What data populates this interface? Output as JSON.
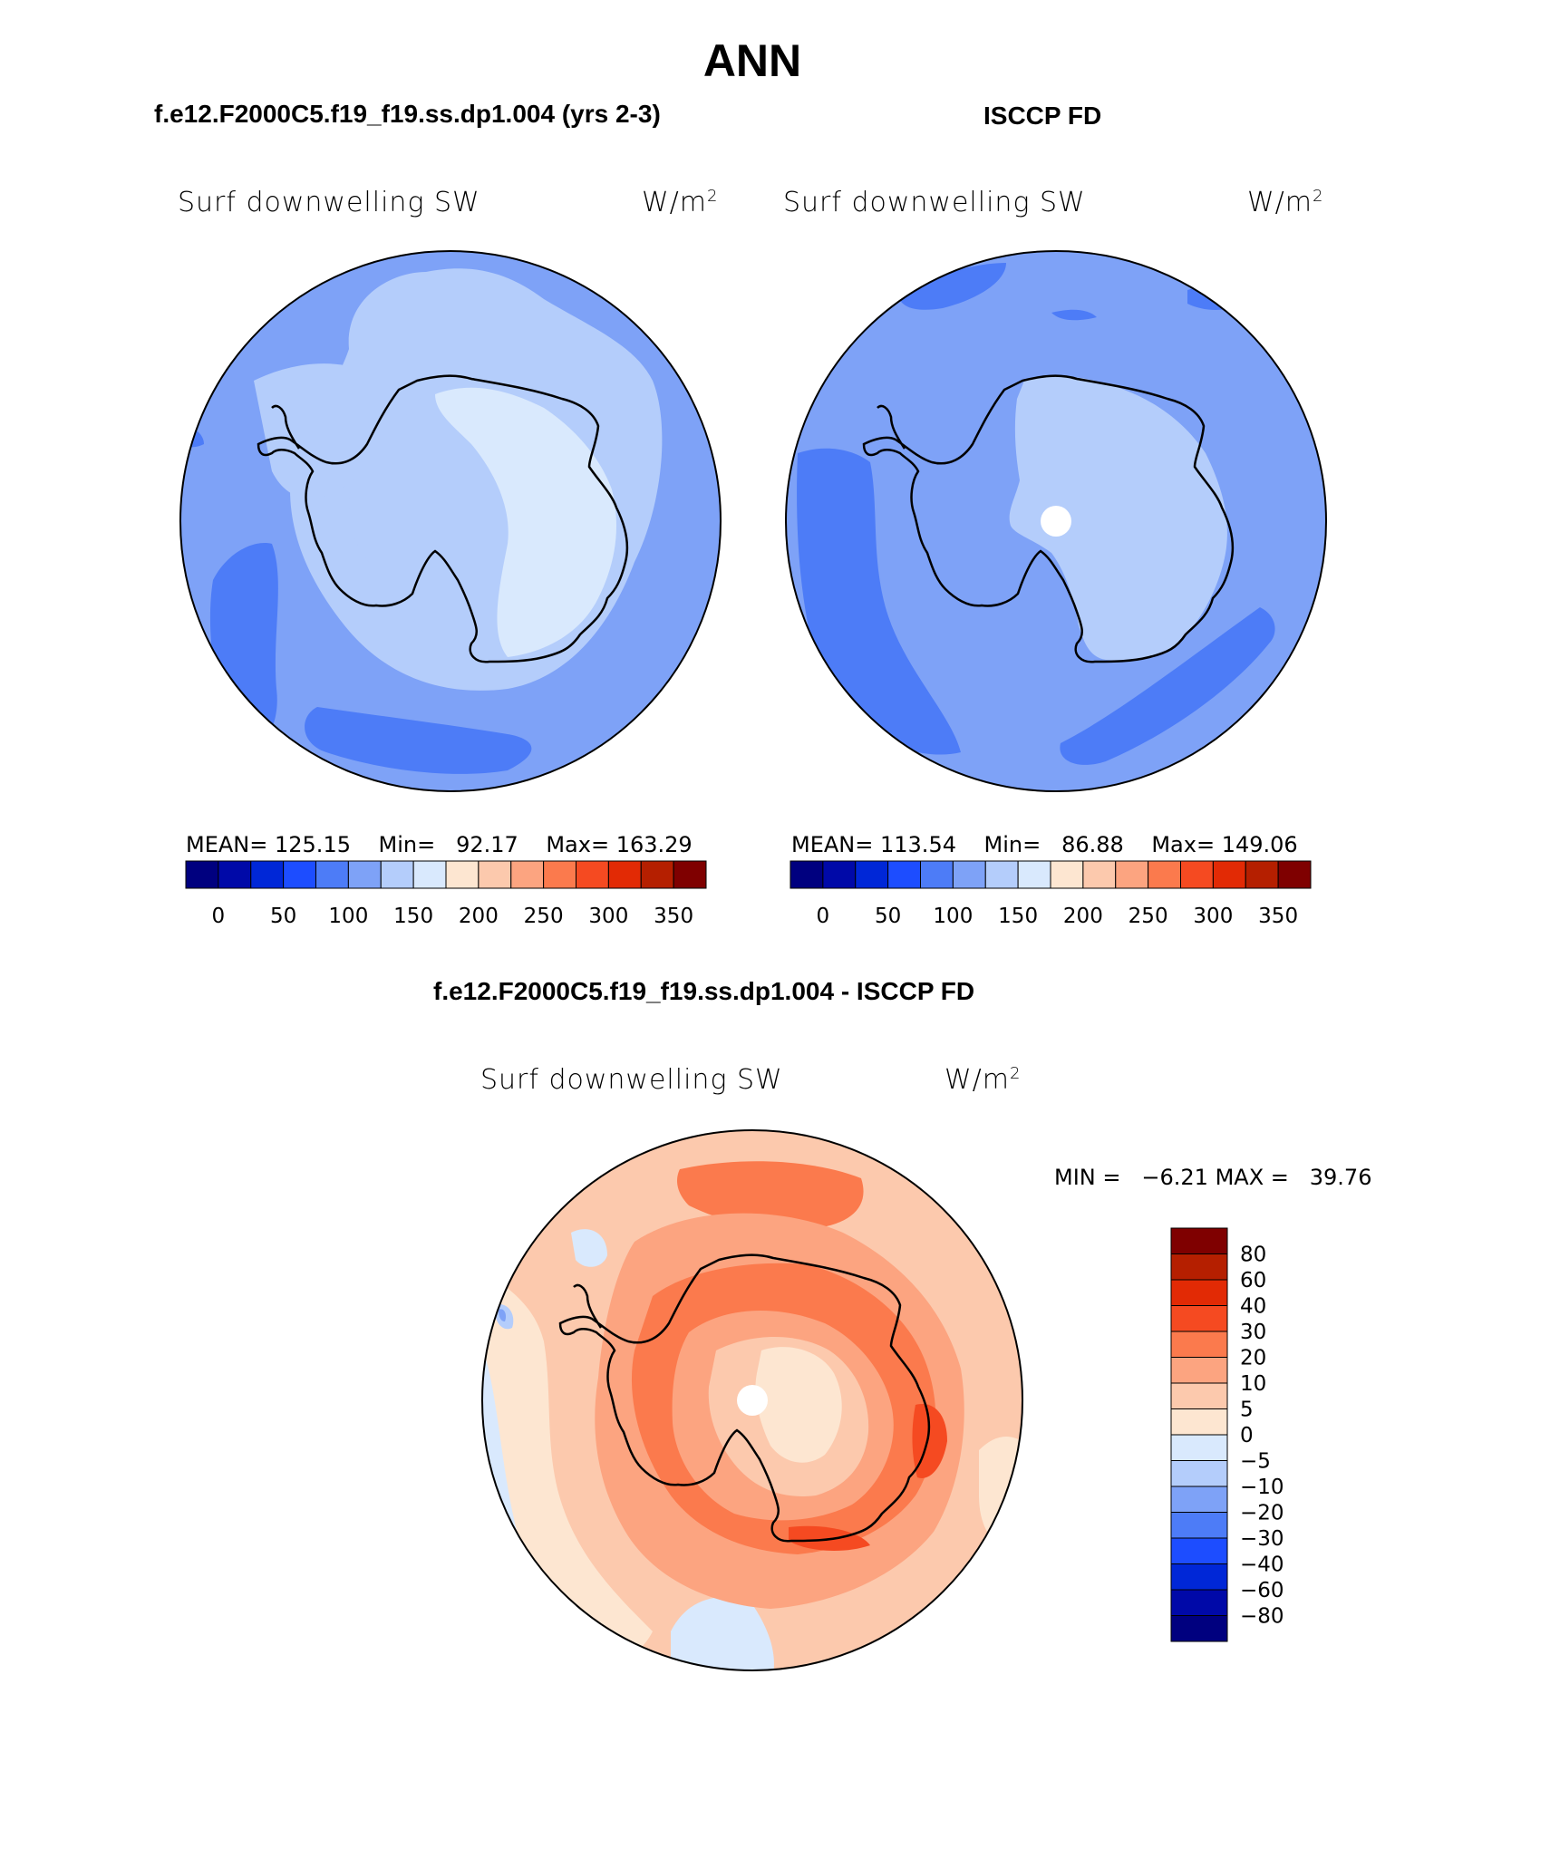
{
  "title": "ANN",
  "panels": {
    "model": {
      "case": "f.e12.F2000C5.f19_f19.ss.dp1.004 (yrs 2-3)",
      "variable": "Surf downwelling SW",
      "units": "W/m",
      "units_exp": "2",
      "stats": {
        "mean_label": "MEAN=",
        "mean": "125.15",
        "min_label": "Min=",
        "min": "92.17",
        "max_label": "Max=",
        "max": "163.29"
      }
    },
    "obs": {
      "case": "ISCCP FD",
      "variable": "Surf downwelling SW",
      "units": "W/m",
      "units_exp": "2",
      "stats": {
        "mean_label": "MEAN=",
        "mean": "113.54",
        "min_label": "Min=",
        "min": "86.88",
        "max_label": "Max=",
        "max": "149.06"
      }
    },
    "diff": {
      "case": "f.e12.F2000C5.f19_f19.ss.dp1.004 - ISCCP FD",
      "variable": "Surf downwelling SW",
      "units": "W/m",
      "units_exp": "2",
      "stats": {
        "min_label": "MIN =",
        "min": "−6.21",
        "max_label": "MAX =",
        "max": "39.76"
      }
    }
  },
  "colorbar_abs": {
    "colors": [
      "#00007f",
      "#0009a8",
      "#0027d7",
      "#1d4dff",
      "#4d7cf7",
      "#7ea2f7",
      "#b4cdfb",
      "#d9e9fd",
      "#fde6d1",
      "#fcc9ad",
      "#fca480",
      "#fb7a4d",
      "#f54a21",
      "#e22a05",
      "#b51f00",
      "#7f0000"
    ],
    "tick_labels": [
      "0",
      "50",
      "100",
      "150",
      "200",
      "250",
      "300",
      "350"
    ]
  },
  "colorbar_diff": {
    "colors": [
      "#7f0000",
      "#b51f00",
      "#e22a05",
      "#f54a21",
      "#fb7a4d",
      "#fca480",
      "#fcc9ad",
      "#fde6d1",
      "#d9e9fd",
      "#b4cdfb",
      "#7ea2f7",
      "#4d7cf7",
      "#1d4dff",
      "#0027d7",
      "#0009a8",
      "#00007f"
    ],
    "tick_labels": [
      "80",
      "60",
      "40",
      "30",
      "20",
      "10",
      "5",
      "0",
      "−5",
      "−10",
      "−20",
      "−30",
      "−40",
      "−60",
      "−80"
    ]
  },
  "map_colors": {
    "model": {
      "ocean": "#7ea2f7",
      "outer": "#b4cdfb",
      "dark": "#4d7cf7",
      "interior": "#b4cdfb",
      "plateau": "#d9e9fd"
    },
    "obs": {
      "ocean": "#7ea2f7",
      "dark": "#4d7cf7",
      "interior": "#b4cdfb"
    },
    "diff": {
      "base": "#fcc9ad",
      "light": "#fde6d1",
      "mid": "#fca480",
      "strong": "#fb7a4d",
      "max": "#f54a21",
      "neg": "#d9e9fd",
      "neg2": "#b4cdfb",
      "neg3": "#7ea2f7"
    }
  }
}
